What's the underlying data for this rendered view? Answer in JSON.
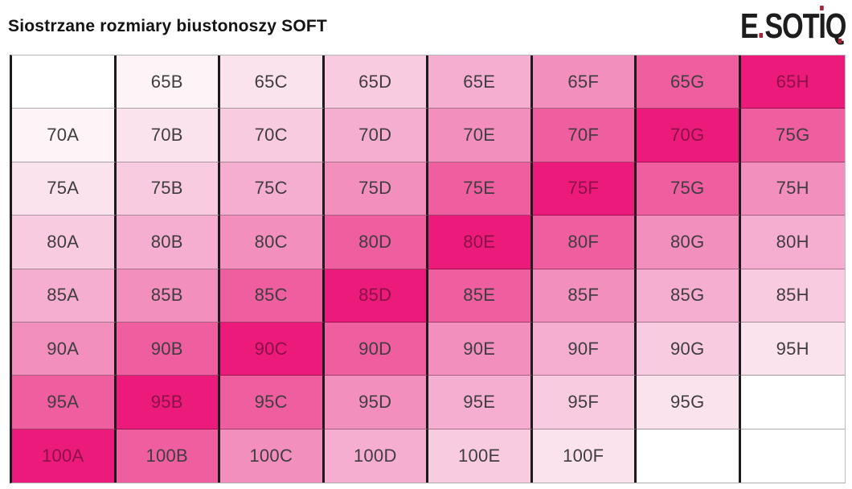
{
  "header": {
    "title": "Siostrzane rozmiary biustonoszy SOFT",
    "logo": {
      "brand": "ESOTIQ",
      "segments": {
        "e": "E",
        "sot": "SOT",
        "i": "I",
        "q": "Q"
      },
      "letter_color": "#1D1D1F",
      "dot_color": "#A32638"
    }
  },
  "chart_data": {
    "type": "heatmap",
    "title": "Siostrzane rozmiary biustonoszy SOFT",
    "columns": 8,
    "rows": 8,
    "cells": [
      [
        "",
        "65B",
        "65C",
        "65D",
        "65E",
        "65F",
        "65G",
        "65H"
      ],
      [
        "70A",
        "70B",
        "70C",
        "70D",
        "70E",
        "70F",
        "70G",
        "75G"
      ],
      [
        "75A",
        "75B",
        "75C",
        "75D",
        "75E",
        "75F",
        "75G",
        "75H"
      ],
      [
        "80A",
        "80B",
        "80C",
        "80D",
        "80E",
        "80F",
        "80G",
        "80H"
      ],
      [
        "85A",
        "85B",
        "85C",
        "85D",
        "85E",
        "85F",
        "85G",
        "85H"
      ],
      [
        "90A",
        "90B",
        "90C",
        "90D",
        "90E",
        "90F",
        "90G",
        "95H"
      ],
      [
        "95A",
        "95B",
        "95C",
        "95D",
        "95E",
        "95F",
        "95G",
        ""
      ],
      [
        "100A",
        "100B",
        "100C",
        "100D",
        "100E",
        "100F",
        "",
        ""
      ]
    ],
    "shades": [
      [
        7,
        6,
        5,
        4,
        3,
        2,
        1,
        0
      ],
      [
        6,
        5,
        4,
        3,
        2,
        1,
        0,
        1
      ],
      [
        5,
        4,
        3,
        2,
        1,
        0,
        1,
        2
      ],
      [
        4,
        3,
        2,
        1,
        0,
        1,
        2,
        3
      ],
      [
        3,
        2,
        1,
        0,
        1,
        2,
        3,
        4
      ],
      [
        2,
        1,
        0,
        1,
        2,
        3,
        4,
        5
      ],
      [
        1,
        0,
        1,
        2,
        3,
        4,
        5,
        7
      ],
      [
        0,
        1,
        2,
        3,
        4,
        5,
        7,
        7
      ]
    ],
    "palette": [
      "#EC1B7B",
      "#EF5F9F",
      "#F38FBC",
      "#F6AED0",
      "#F9CBE0",
      "#FBE3EE",
      "#FEF4F8",
      "#FFFFFF"
    ],
    "text_color": "#3F3D40",
    "text_color_on_diagonal": "#8D1049",
    "grid_lines": {
      "column_line_color": "#1B1B1B",
      "row_line_color": "rgba(0,0,0,0.33)"
    }
  }
}
